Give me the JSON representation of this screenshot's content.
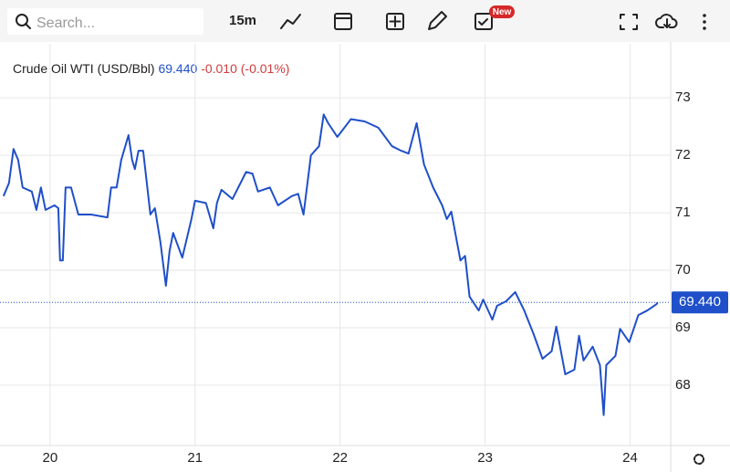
{
  "toolbar": {
    "search_placeholder": "Search...",
    "interval": "15m",
    "badge": "New"
  },
  "chart_data": {
    "type": "line",
    "title": "Crude Oil WTI (USD/Bbl)",
    "price": "69.440",
    "change": "-0.010 (-0.01%)",
    "price_line": {
      "value": 69.44,
      "label": "69.440"
    },
    "price_color": "#1f4fc9",
    "change_color": "#d23c3c",
    "x": [
      19.679,
      19.717,
      19.748,
      19.78,
      19.811,
      19.874,
      19.906,
      19.937,
      19.969,
      20.031,
      20.057,
      20.069,
      20.088,
      20.107,
      20.145,
      20.195,
      20.283,
      20.396,
      20.421,
      20.459,
      20.491,
      20.541,
      20.566,
      20.585,
      20.61,
      20.642,
      20.692,
      20.723,
      20.761,
      20.799,
      20.824,
      20.849,
      20.912,
      20.975,
      21.0,
      21.075,
      21.126,
      21.151,
      21.182,
      21.258,
      21.352,
      21.396,
      21.434,
      21.516,
      21.572,
      21.667,
      21.711,
      21.748,
      21.799,
      21.855,
      21.887,
      21.918,
      21.981,
      22.075,
      22.17,
      22.264,
      22.358,
      22.421,
      22.472,
      22.528,
      22.579,
      22.642,
      22.704,
      22.736,
      22.767,
      22.83,
      22.862,
      22.893,
      22.956,
      22.987,
      23.05,
      23.082,
      23.145,
      23.208,
      23.27,
      23.333,
      23.396,
      23.459,
      23.491,
      23.553,
      23.616,
      23.648,
      23.679,
      23.742,
      23.792,
      23.818,
      23.836,
      23.899,
      23.931,
      23.994,
      24.057,
      24.119,
      24.182,
      24.19
    ],
    "series": [
      {
        "color": "#1f4fc9",
        "values": [
          71.29,
          71.52,
          72.11,
          71.92,
          71.44,
          71.37,
          71.05,
          71.44,
          71.05,
          71.13,
          71.08,
          70.17,
          70.17,
          71.44,
          71.44,
          70.97,
          70.97,
          70.92,
          71.44,
          71.44,
          71.92,
          72.35,
          71.92,
          71.76,
          72.08,
          72.08,
          70.97,
          71.08,
          70.49,
          69.73,
          70.33,
          70.65,
          70.22,
          70.89,
          71.21,
          71.17,
          70.73,
          71.17,
          71.4,
          71.24,
          71.71,
          71.68,
          71.37,
          71.44,
          71.13,
          71.29,
          71.33,
          70.97,
          72.0,
          72.16,
          72.71,
          72.56,
          72.32,
          72.63,
          72.59,
          72.48,
          72.16,
          72.08,
          72.03,
          72.56,
          71.84,
          71.44,
          71.13,
          70.89,
          71.02,
          70.17,
          70.25,
          69.54,
          69.3,
          69.49,
          69.14,
          69.38,
          69.46,
          69.62,
          69.3,
          68.9,
          68.46,
          68.59,
          69.02,
          68.19,
          68.27,
          68.86,
          68.43,
          68.67,
          68.35,
          67.48,
          68.35,
          68.51,
          68.98,
          68.75,
          69.22,
          69.3,
          69.41,
          69.44
        ]
      }
    ],
    "xlim": [
      19.68,
      24.28
    ],
    "xticks": [
      20,
      21,
      22,
      23,
      24
    ],
    "ylim": [
      66.95,
      73.94
    ],
    "yticks": [
      68,
      69,
      70,
      71,
      72,
      73
    ],
    "grid": true
  }
}
